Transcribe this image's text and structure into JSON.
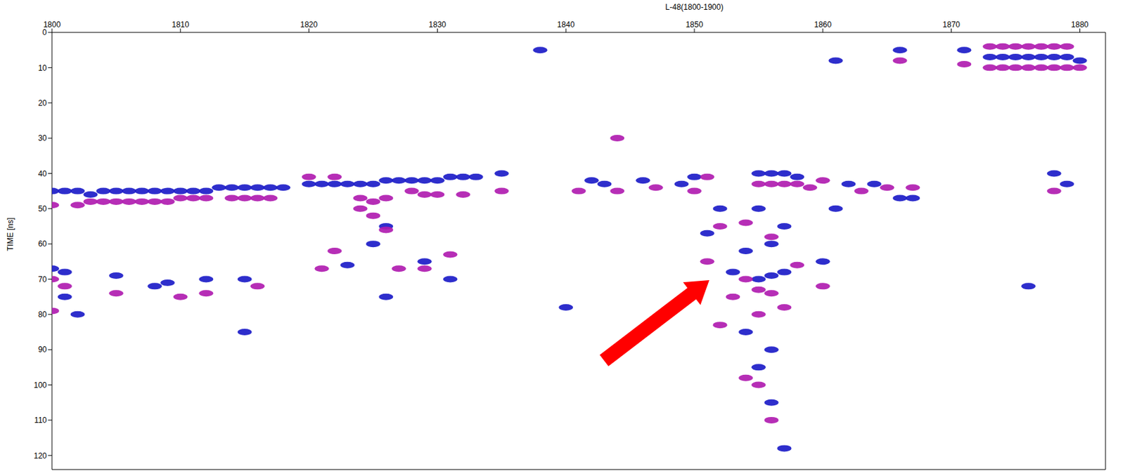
{
  "chart_data": {
    "type": "scatter",
    "title": "L-48(1800-1900)",
    "ylabel": "TIME [ns]",
    "xlim": [
      1800,
      1882
    ],
    "xticks": [
      1800,
      1810,
      1820,
      1830,
      1840,
      1850,
      1860,
      1870,
      1880
    ],
    "ylim": [
      0,
      124
    ],
    "yticks": [
      0,
      10,
      20,
      30,
      40,
      50,
      60,
      70,
      80,
      90,
      100,
      110,
      120
    ],
    "tick_labels": true,
    "series": [
      {
        "color": "#1c1cc8",
        "x": [
          1800,
          1801,
          1802,
          1803,
          1804,
          1805,
          1806,
          1807,
          1808,
          1809,
          1810,
          1811,
          1812,
          1813,
          1814,
          1815,
          1816,
          1817,
          1818,
          1820,
          1821,
          1822,
          1823,
          1824,
          1825,
          1826,
          1827,
          1828,
          1829,
          1830,
          1831,
          1832,
          1833,
          1842,
          1843,
          1846,
          1849,
          1850,
          1855,
          1856,
          1857,
          1858,
          1862,
          1864,
          1866,
          1867,
          1800,
          1801,
          1805,
          1808,
          1809,
          1812,
          1815,
          1801,
          1802,
          1815,
          1826,
          1825,
          1823,
          1829,
          1831,
          1826,
          1852,
          1851,
          1853,
          1855,
          1856,
          1857,
          1854,
          1856,
          1857,
          1855,
          1860,
          1861,
          1855,
          1856,
          1857,
          1854,
          1856,
          1873,
          1874,
          1875,
          1876,
          1877,
          1878,
          1879,
          1880,
          1876,
          1878,
          1879,
          1861,
          1866,
          1871,
          1838,
          1835,
          1840
        ],
        "values": [
          45,
          45,
          45,
          46,
          45,
          45,
          45,
          45,
          45,
          45,
          45,
          45,
          45,
          44,
          44,
          44,
          44,
          44,
          44,
          43,
          43,
          43,
          43,
          43,
          43,
          42,
          42,
          42,
          42,
          42,
          41,
          41,
          41,
          42,
          43,
          42,
          43,
          41,
          40,
          40,
          40,
          41,
          43,
          43,
          47,
          47,
          67,
          68,
          69,
          72,
          71,
          70,
          70,
          75,
          80,
          85,
          55,
          60,
          66,
          65,
          70,
          75,
          50,
          57,
          68,
          70,
          69,
          68,
          62,
          60,
          55,
          50,
          65,
          50,
          95,
          105,
          118,
          85,
          90,
          7,
          7,
          7,
          7,
          7,
          7,
          7,
          8,
          72,
          40,
          43,
          8,
          5,
          5,
          5,
          40,
          78
        ]
      },
      {
        "color": "#b01cb0",
        "x": [
          1800,
          1802,
          1803,
          1804,
          1805,
          1806,
          1807,
          1808,
          1809,
          1810,
          1811,
          1812,
          1814,
          1815,
          1816,
          1817,
          1820,
          1822,
          1824,
          1825,
          1826,
          1828,
          1829,
          1830,
          1832,
          1835,
          1841,
          1844,
          1847,
          1850,
          1851,
          1855,
          1856,
          1857,
          1858,
          1859,
          1860,
          1863,
          1865,
          1867,
          1800,
          1801,
          1805,
          1810,
          1812,
          1816,
          1800,
          1824,
          1825,
          1826,
          1822,
          1821,
          1827,
          1829,
          1831,
          1852,
          1851,
          1853,
          1854,
          1855,
          1856,
          1857,
          1858,
          1856,
          1854,
          1852,
          1860,
          1854,
          1855,
          1856,
          1855,
          1873,
          1874,
          1875,
          1876,
          1877,
          1878,
          1879,
          1873,
          1874,
          1875,
          1876,
          1877,
          1878,
          1879,
          1880,
          1878,
          1871,
          1866,
          1844
        ],
        "values": [
          49,
          49,
          48,
          48,
          48,
          48,
          48,
          48,
          48,
          47,
          47,
          47,
          47,
          47,
          47,
          47,
          41,
          41,
          47,
          48,
          47,
          45,
          46,
          46,
          46,
          45,
          45,
          45,
          44,
          45,
          41,
          43,
          43,
          43,
          43,
          44,
          42,
          45,
          44,
          44,
          70,
          72,
          74,
          75,
          74,
          72,
          79,
          50,
          52,
          56,
          62,
          67,
          67,
          67,
          63,
          55,
          65,
          75,
          70,
          73,
          74,
          78,
          66,
          58,
          54,
          83,
          72,
          98,
          100,
          110,
          80,
          4,
          4,
          4,
          4,
          4,
          4,
          4,
          10,
          10,
          10,
          10,
          10,
          10,
          10,
          10,
          45,
          9,
          8,
          30
        ]
      }
    ]
  }
}
